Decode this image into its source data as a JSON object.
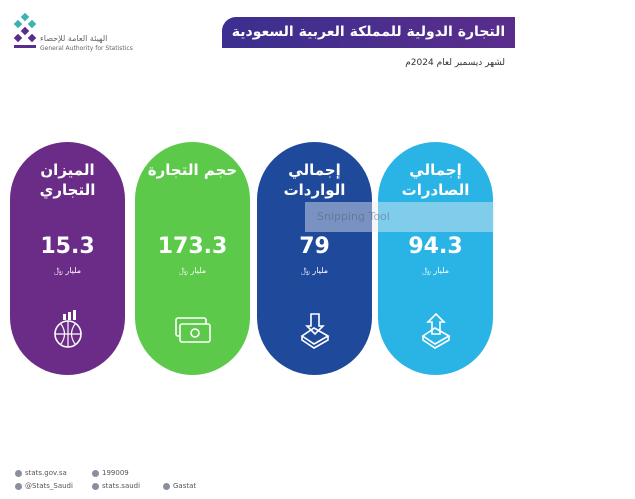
{
  "header": {
    "org_ar": "الهيئة العامة للإحصاء",
    "org_en": "General Authority for Statistics",
    "title": "التجارة الدولية للمملكة العربية السعودية",
    "subtitle": "لشهر ديسمبر لعام 2024م"
  },
  "cards": [
    {
      "label": "إجمالي الصادرات",
      "value": 94.3,
      "unit": "مليار ﷼"
    },
    {
      "label": "إجمالي الواردات",
      "value": 79,
      "unit": "مليار ﷼"
    },
    {
      "label": "حجم التجارة",
      "value": 173.3,
      "unit": "مليار ﷼"
    },
    {
      "label": "الميزان التجاري",
      "value": 15.3,
      "unit": "مليار ﷼"
    }
  ],
  "watermark": "Snipping Tool",
  "footer": {
    "website": "stats.gov.sa",
    "phone": "199009",
    "twitter": "@Stats_Saudi",
    "facebook": "stats.saudi",
    "app": "Gastat"
  }
}
